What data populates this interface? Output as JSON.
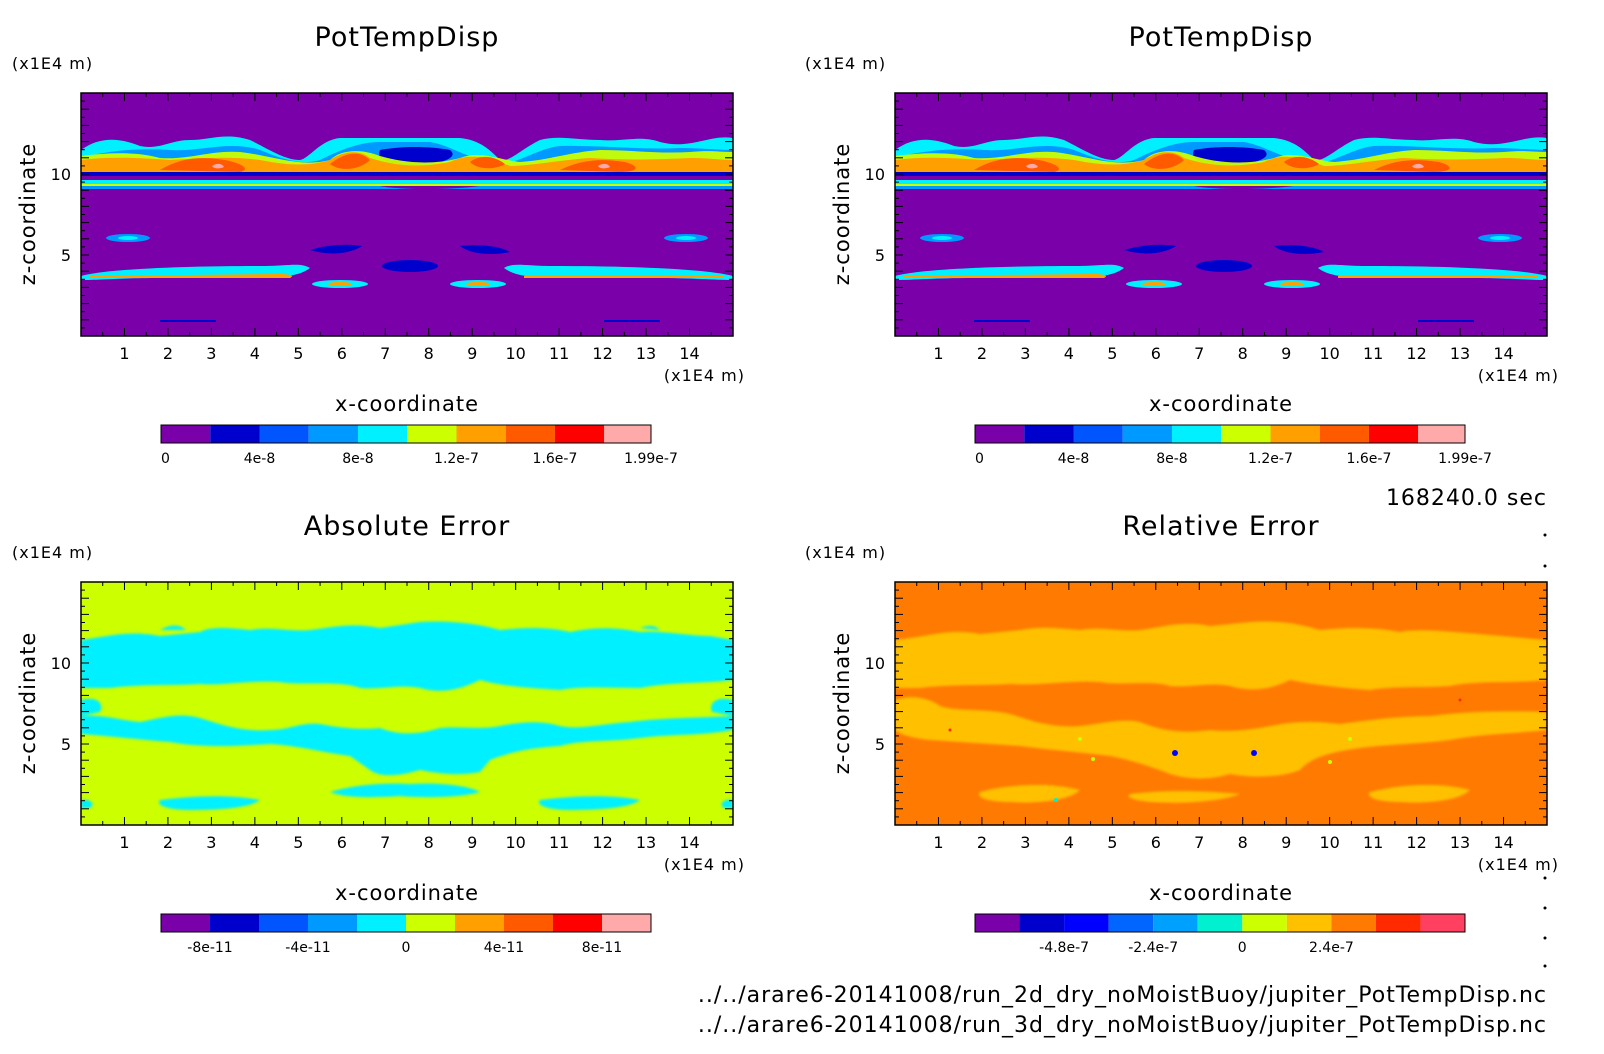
{
  "chart_data": [
    {
      "type": "heatmap",
      "title": "PotTempDisp",
      "xlabel": "x-coordinate",
      "ylabel": "z-coordinate",
      "x_unit": "(x1E4 m)",
      "y_unit": "(x1E4 m)",
      "xlim": [
        0,
        15
      ],
      "ylim": [
        0,
        15
      ],
      "x_ticks": [
        "1",
        "2",
        "3",
        "4",
        "5",
        "6",
        "7",
        "8",
        "9",
        "10",
        "11",
        "12",
        "13",
        "14"
      ],
      "y_ticks": [
        "5",
        "10"
      ],
      "background_color": "#7a00aa",
      "colorbar": {
        "levels": [
          0,
          2e-08,
          4e-08,
          6e-08,
          8e-08,
          1e-07,
          1.2e-07,
          1.4e-07,
          1.6e-07,
          1.8e-07,
          1.99e-07
        ],
        "colors": [
          "#7a00aa",
          "#0000cc",
          "#0055ff",
          "#0099ff",
          "#00f0ff",
          "#ccff00",
          "#ffa000",
          "#ff5a00",
          "#ff0000",
          "#ffaaaa"
        ],
        "labels": [
          "0",
          "4e-8",
          "8e-8",
          "1.2e-7",
          "1.6e-7",
          "1.99e-7"
        ]
      },
      "features": [
        {
          "kind": "wavy_layer",
          "z_range": [
            8.9,
            12.0
          ],
          "level": "1e-7 to 1.99e-7"
        },
        {
          "kind": "thin_band",
          "z": 9.2,
          "level": "4e-8 to 1.2e-7"
        },
        {
          "kind": "band",
          "z": 3.8,
          "level": "8e-8 to 1.4e-7"
        },
        {
          "kind": "blob",
          "x": 7.8,
          "z": 4.3,
          "level": "4e-8"
        },
        {
          "kind": "blob",
          "x": 5.7,
          "z": 5.4,
          "level": "4e-8"
        },
        {
          "kind": "blob",
          "x": 9.3,
          "z": 5.4,
          "level": "4e-8"
        }
      ]
    },
    {
      "type": "heatmap",
      "title": "PotTempDisp",
      "xlabel": "x-coordinate",
      "ylabel": "z-coordinate",
      "x_unit": "(x1E4 m)",
      "y_unit": "(x1E4 m)",
      "xlim": [
        0,
        15
      ],
      "ylim": [
        0,
        15
      ],
      "x_ticks": [
        "1",
        "2",
        "3",
        "4",
        "5",
        "6",
        "7",
        "8",
        "9",
        "10",
        "11",
        "12",
        "13",
        "14"
      ],
      "y_ticks": [
        "5",
        "10"
      ],
      "background_color": "#7a00aa",
      "colorbar": {
        "levels": [
          0,
          2e-08,
          4e-08,
          6e-08,
          8e-08,
          1e-07,
          1.2e-07,
          1.4e-07,
          1.6e-07,
          1.8e-07,
          1.99e-07
        ],
        "colors": [
          "#7a00aa",
          "#0000cc",
          "#0055ff",
          "#0099ff",
          "#00f0ff",
          "#ccff00",
          "#ffa000",
          "#ff5a00",
          "#ff0000",
          "#ffaaaa"
        ],
        "labels": [
          "0",
          "4e-8",
          "8e-8",
          "1.2e-7",
          "1.6e-7",
          "1.99e-7"
        ]
      },
      "features": [
        {
          "kind": "wavy_layer",
          "z_range": [
            8.9,
            12.0
          ],
          "level": "1e-7 to 1.99e-7"
        },
        {
          "kind": "thin_band",
          "z": 9.2,
          "level": "4e-8 to 1.2e-7"
        },
        {
          "kind": "band",
          "z": 3.8,
          "level": "8e-8 to 1.4e-7"
        },
        {
          "kind": "blob",
          "x": 7.8,
          "z": 4.3,
          "level": "4e-8"
        },
        {
          "kind": "blob",
          "x": 5.7,
          "z": 5.4,
          "level": "4e-8"
        },
        {
          "kind": "blob",
          "x": 9.3,
          "z": 5.4,
          "level": "4e-8"
        }
      ]
    },
    {
      "type": "heatmap",
      "title": "Absolute Error",
      "xlabel": "x-coordinate",
      "ylabel": "z-coordinate",
      "x_unit": "(x1E4 m)",
      "y_unit": "(x1E4 m)",
      "xlim": [
        0,
        15
      ],
      "ylim": [
        0,
        15
      ],
      "x_ticks": [
        "1",
        "2",
        "3",
        "4",
        "5",
        "6",
        "7",
        "8",
        "9",
        "10",
        "11",
        "12",
        "13",
        "14"
      ],
      "y_ticks": [
        "5",
        "10"
      ],
      "background_color": "#ccff00",
      "colorbar": {
        "levels": [
          -1e-10,
          -8e-11,
          -6e-11,
          -4e-11,
          -2e-11,
          0,
          2e-11,
          4e-11,
          6e-11,
          8e-11,
          1e-10
        ],
        "colors": [
          "#7a00aa",
          "#0000cc",
          "#0055ff",
          "#0099ff",
          "#00f0ff",
          "#ccff00",
          "#ffa000",
          "#ff5a00",
          "#ff0000",
          "#ffaaaa"
        ],
        "labels": [
          "-8e-11",
          "-4e-11",
          "0",
          "4e-11",
          "8e-11"
        ]
      },
      "features": [
        {
          "kind": "patches",
          "level": "-2e-11 to 0",
          "z_ranges": [
            [
              8.5,
              12
            ],
            [
              4.5,
              6.5
            ],
            [
              0.5,
              1.5
            ]
          ]
        }
      ]
    },
    {
      "type": "heatmap",
      "title": "Relative Error",
      "xlabel": "x-coordinate",
      "ylabel": "z-coordinate",
      "x_unit": "(x1E4 m)",
      "y_unit": "(x1E4 m)",
      "xlim": [
        0,
        15
      ],
      "ylim": [
        0,
        15
      ],
      "x_ticks": [
        "1",
        "2",
        "3",
        "4",
        "5",
        "6",
        "7",
        "8",
        "9",
        "10",
        "11",
        "12",
        "13",
        "14"
      ],
      "y_ticks": [
        "5",
        "10"
      ],
      "background_color": "#ff7a00",
      "colorbar": {
        "levels": [
          -7.2e-07,
          -6e-07,
          -4.8e-07,
          -3.6e-07,
          -2.4e-07,
          -1.2e-07,
          0,
          1.2e-07,
          2.4e-07,
          3.6e-07,
          4.8e-07,
          6e-07
        ],
        "colors": [
          "#7a00aa",
          "#0000cc",
          "#0000ff",
          "#0066ff",
          "#00a0ff",
          "#00f0d0",
          "#ccff00",
          "#ffc000",
          "#ff7a00",
          "#ff2a00",
          "#ff4060",
          "#ffaaaa"
        ],
        "labels": [
          "-4.8e-7",
          "-2.4e-7",
          "0",
          "2.4e-7"
        ]
      },
      "features": [
        {
          "kind": "patches",
          "level": "0 to 1.2e-7",
          "z_ranges": [
            [
              8.5,
              12
            ],
            [
              1,
              7
            ]
          ]
        }
      ]
    }
  ],
  "info": {
    "time": "168240.0 sec",
    "file1": "../../arare6-20141008/run_2d_dry_noMoistBuoy/jupiter_PotTempDisp.nc",
    "file2": "../../arare6-20141008/run_3d_dry_noMoistBuoy/jupiter_PotTempDisp.nc"
  }
}
